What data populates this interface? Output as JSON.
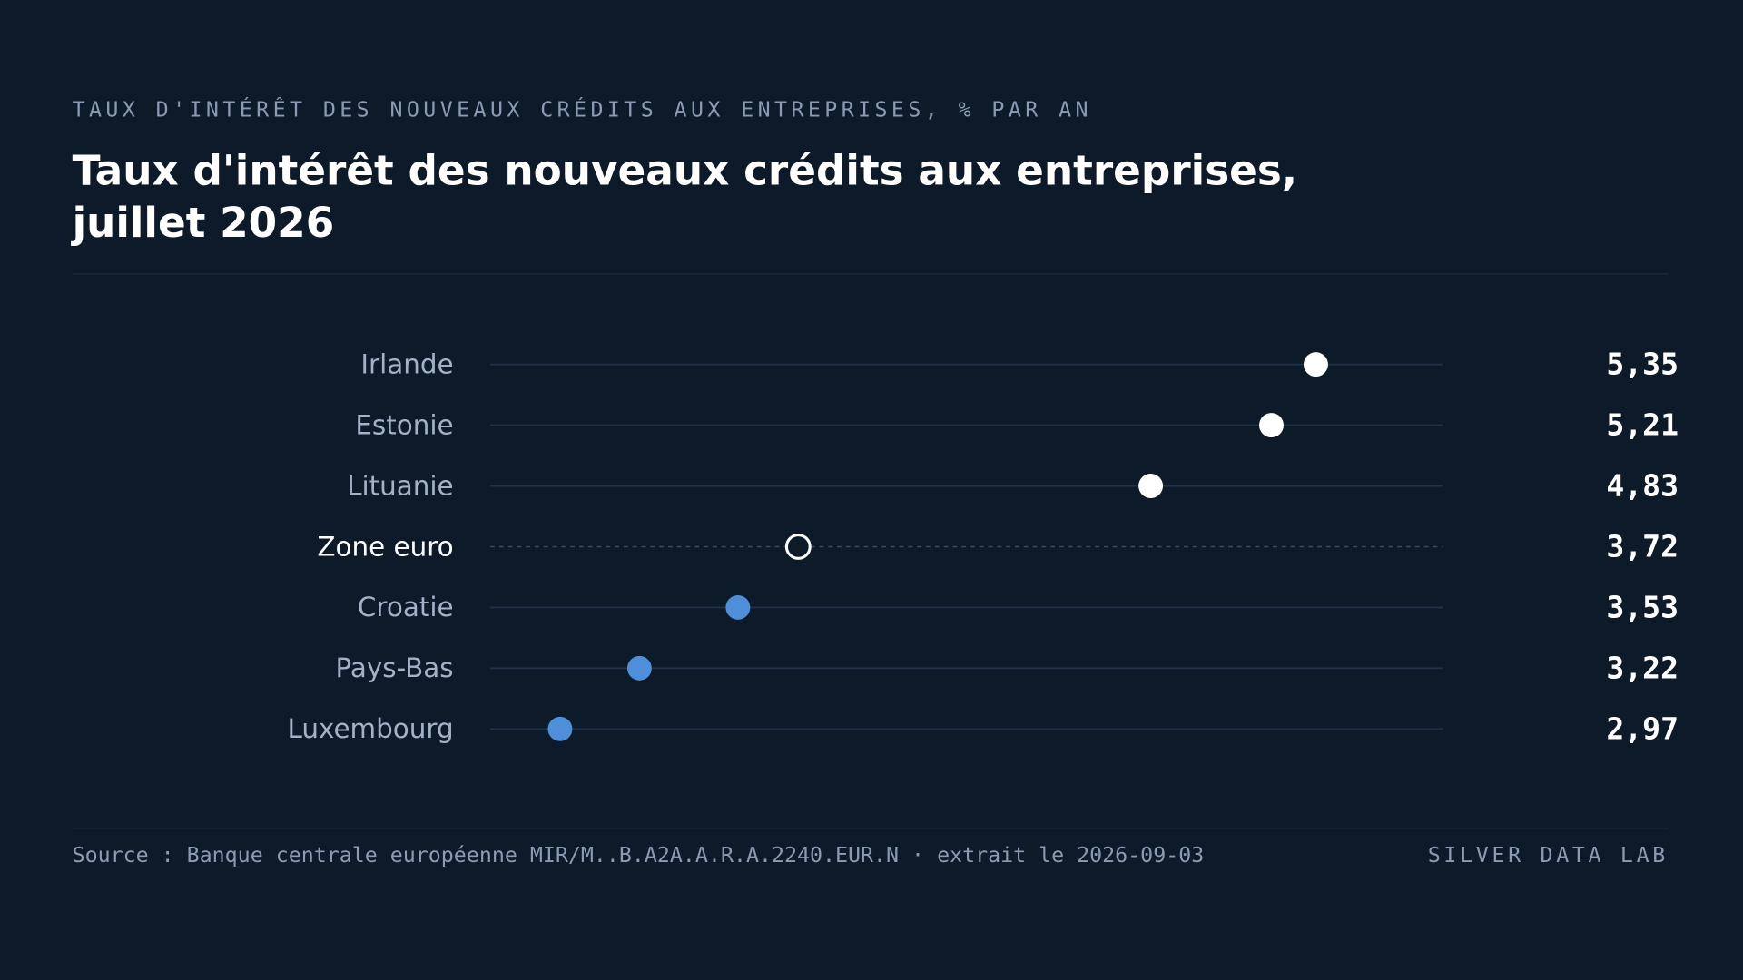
{
  "header": {
    "kicker": "TAUX D'INTÉRÊT DES NOUVEAUX CRÉDITS AUX ENTREPRISES, % PAR AN",
    "title": "Taux d'intérêt des nouveaux crédits aux entreprises, juillet 2026"
  },
  "footer": {
    "source": "Source : Banque centrale européenne MIR/M..B.A2A.A.R.A.2240.EUR.N · extrait le 2026-09-03",
    "brand": "SILVER DATA LAB"
  },
  "colors": {
    "background": "#0d1a2a",
    "high": "#ffffff",
    "low": "#4f8fd9",
    "reference": "#ffffff",
    "track": "#1f3248",
    "label": "#a3b2c8",
    "reference_label": "#ffffff",
    "value": "#ffffff"
  },
  "chart_data": {
    "type": "scatter",
    "title": "Taux d'intérêt des nouveaux crédits aux entreprises, juillet 2026",
    "xlim": [
      2.75,
      5.75
    ],
    "categories": [
      "Irlande",
      "Estonie",
      "Lituanie",
      "Zone euro",
      "Croatie",
      "Pays-Bas",
      "Luxembourg"
    ],
    "values": [
      5.35,
      5.21,
      4.83,
      3.72,
      3.53,
      3.22,
      2.97
    ],
    "value_labels": [
      "5,35",
      "5,21",
      "4,83",
      "3,72",
      "3,53",
      "3,22",
      "2,97"
    ],
    "reference_category": "Zone euro"
  }
}
